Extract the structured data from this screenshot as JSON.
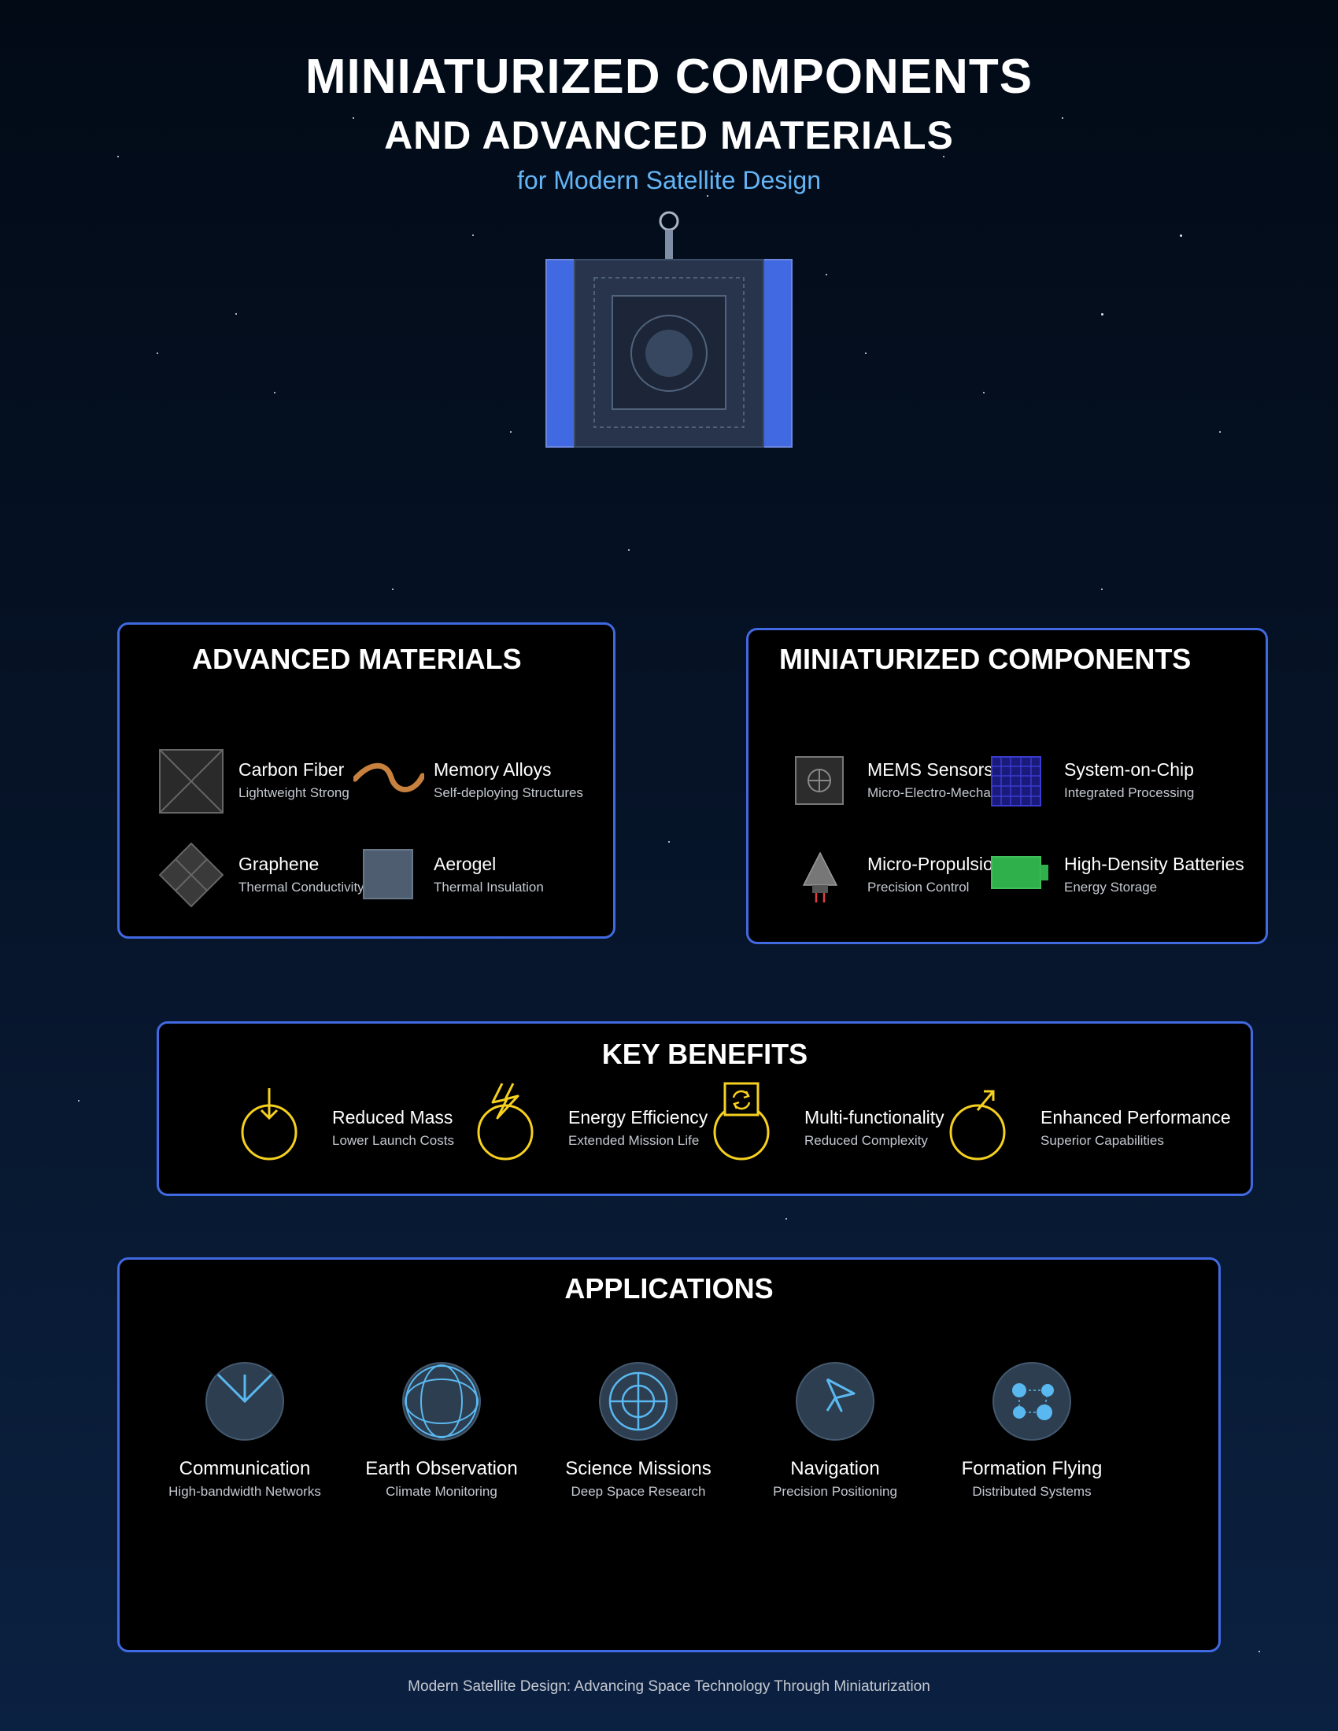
{
  "header": {
    "title_line1": "MINIATURIZED COMPONENTS",
    "title_line2": "AND ADVANCED MATERIALS",
    "subtitle": "for Modern Satellite Design"
  },
  "colors": {
    "accent_blue": "#4169e1",
    "subtitle_blue": "#64b5f6",
    "benefit_yellow": "#f5d020",
    "app_icon_blue": "#5ab8f0",
    "solar_panel": "#4169e1"
  },
  "materials": {
    "title": "ADVANCED MATERIALS",
    "items": [
      {
        "label": "Carbon Fiber",
        "desc": "Lightweight Strong",
        "icon": "carbon-fiber-icon"
      },
      {
        "label": "Memory Alloys",
        "desc": "Self-deploying Structures",
        "icon": "memory-alloy-icon"
      },
      {
        "label": "Graphene",
        "desc": "Thermal Conductivity",
        "icon": "graphene-icon"
      },
      {
        "label": "Aerogel",
        "desc": "Thermal Insulation",
        "icon": "aerogel-icon"
      }
    ]
  },
  "components": {
    "title": "MINIATURIZED COMPONENTS",
    "items": [
      {
        "label": "MEMS Sensors",
        "desc": "Micro-Electro-Mecha",
        "icon": "mems-sensor-icon"
      },
      {
        "label": "System-on-Chip",
        "desc": "Integrated Processing",
        "icon": "chip-icon"
      },
      {
        "label": "Micro-Propulsion",
        "desc": "Precision Control",
        "icon": "thruster-icon"
      },
      {
        "label": "High-Density Batteries",
        "desc": "Energy Storage",
        "icon": "battery-icon"
      }
    ]
  },
  "benefits": {
    "title": "KEY BENEFITS",
    "items": [
      {
        "label": "Reduced Mass",
        "desc": "Lower Launch Costs",
        "icon": "down-arrow-icon"
      },
      {
        "label": "Energy Efficiency",
        "desc": "Extended Mission Life",
        "icon": "lightning-icon"
      },
      {
        "label": "Multi-functionality",
        "desc": "Reduced Complexity",
        "icon": "refresh-icon"
      },
      {
        "label": "Enhanced Performance",
        "desc": "Superior Capabilities",
        "icon": "up-arrow-icon"
      }
    ]
  },
  "applications": {
    "title": "APPLICATIONS",
    "items": [
      {
        "label": "Communication",
        "desc": "High-bandwidth Networks",
        "icon": "antenna-icon"
      },
      {
        "label": "Earth Observation",
        "desc": "Climate Monitoring",
        "icon": "globe-icon"
      },
      {
        "label": "Science Missions",
        "desc": "Deep Space Research",
        "icon": "target-icon"
      },
      {
        "label": "Navigation",
        "desc": "Precision Positioning",
        "icon": "navigation-arrow-icon"
      },
      {
        "label": "Formation Flying",
        "desc": "Distributed Systems",
        "icon": "network-icon"
      }
    ]
  },
  "footer": {
    "text": "Modern Satellite Design: Advancing Space Technology Through Miniaturization"
  }
}
